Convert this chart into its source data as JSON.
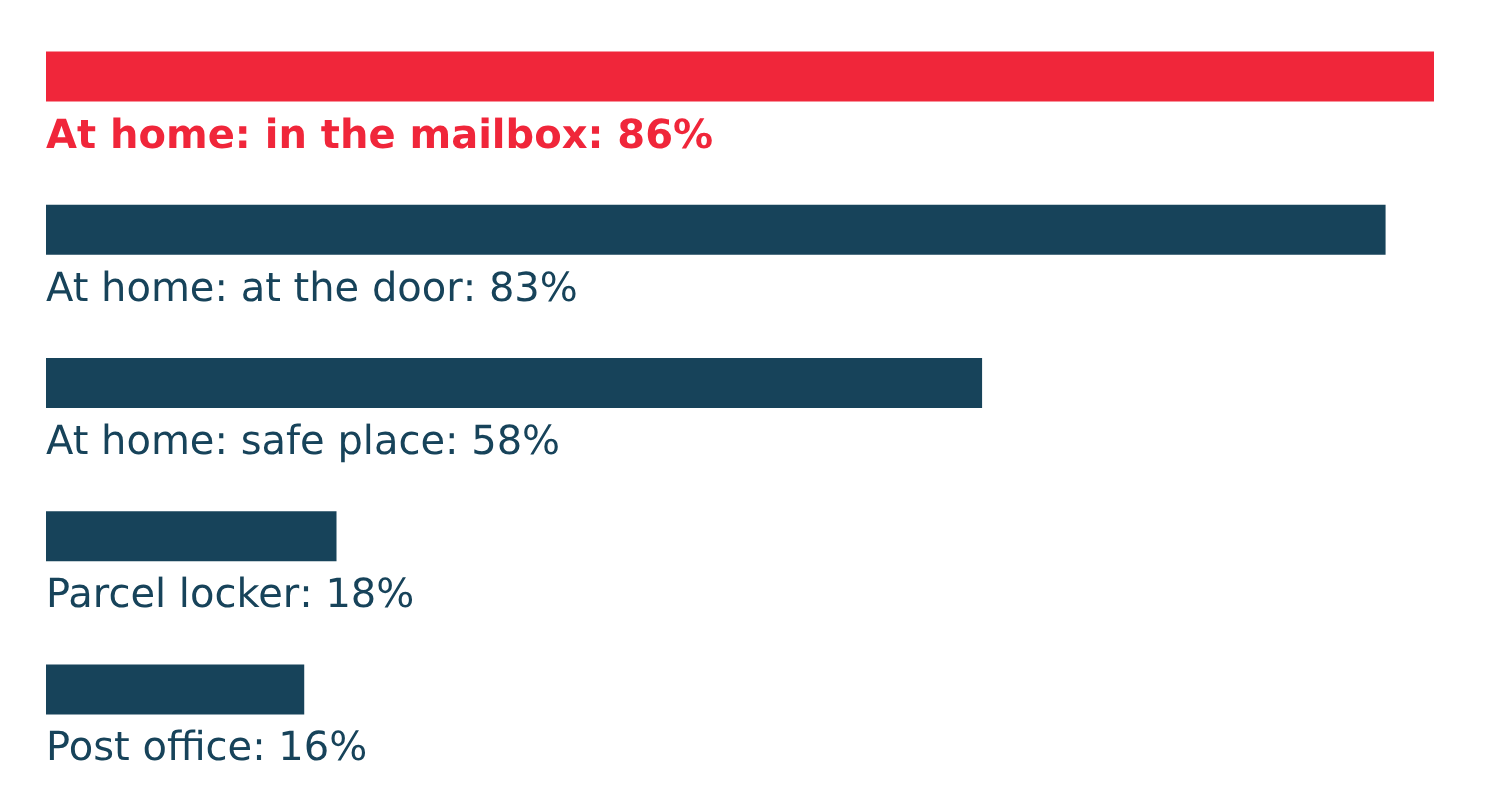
{
  "chart_data": {
    "type": "bar",
    "orientation": "horizontal",
    "categories": [
      "At home: in the mailbox",
      "At home: at the door",
      "At home: safe place",
      "Parcel locker",
      "Post office"
    ],
    "values": [
      86,
      83,
      58,
      18,
      16
    ],
    "value_labels": [
      ": 86%",
      ": 83%",
      ": 58%",
      ": 18%",
      ": 16%"
    ],
    "colors": [
      "#f0263a",
      "#17435a",
      "#17435a",
      "#17435a",
      "#17435a"
    ]
  }
}
